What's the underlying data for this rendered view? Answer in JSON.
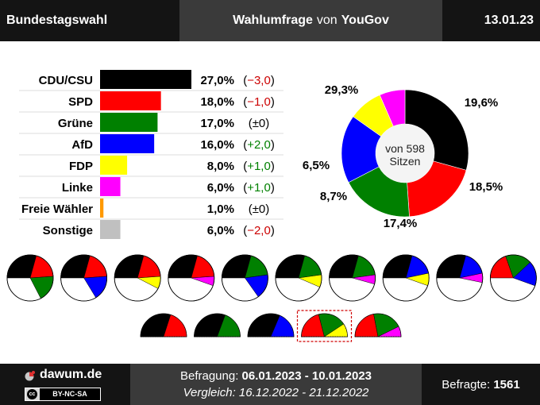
{
  "header": {
    "title": "Bundestagswahl",
    "poll_label": "Wahlumfrage",
    "poll_connector": "von",
    "pollster": "YouGov",
    "date": "13.01.23"
  },
  "chart_data": {
    "type": "bar",
    "categories": [
      "CDU/CSU",
      "SPD",
      "Grüne",
      "AfD",
      "FDP",
      "Linke",
      "Freie Wähler",
      "Sonstige"
    ],
    "values": [
      27.0,
      18.0,
      17.0,
      16.0,
      8.0,
      6.0,
      1.0,
      6.0
    ],
    "value_labels": [
      "27,0%",
      "18,0%",
      "17,0%",
      "16,0%",
      "8,0%",
      "6,0%",
      "1,0%",
      "6,0%"
    ],
    "changes": [
      "−3,0",
      "−1,0",
      "±0",
      "+2,0",
      "+1,0",
      "+1,0",
      "±0",
      "−2,0"
    ],
    "colors": [
      "#000000",
      "#ff0000",
      "#008000",
      "#0000ff",
      "#ffff00",
      "#ff00ff",
      "#ff9900",
      "#c0c0c0"
    ],
    "change_colors": {
      "negative": "#cc0000",
      "neutral": "#000000",
      "positive": "#008000"
    },
    "seat_chart": {
      "type": "donut",
      "center_line1": "von 598",
      "center_line2": "Sitzen",
      "segments": [
        {
          "party": "CDU/CSU",
          "value": 29.3,
          "label": "29,3%",
          "color": "#000000"
        },
        {
          "party": "SPD",
          "value": 19.6,
          "label": "19,6%",
          "color": "#ff0000"
        },
        {
          "party": "Grüne",
          "value": 18.5,
          "label": "18,5%",
          "color": "#008000"
        },
        {
          "party": "AfD",
          "value": 17.4,
          "label": "17,4%",
          "color": "#0000ff"
        },
        {
          "party": "FDP",
          "value": 8.7,
          "label": "8,7%",
          "color": "#ffff00"
        },
        {
          "party": "Linke",
          "value": 6.5,
          "label": "6,5%",
          "color": "#ff00ff"
        }
      ]
    },
    "coalitions": [
      {
        "parties": [
          "CDU/CSU",
          "SPD",
          "Grüne"
        ],
        "shares": [
          29.3,
          19.6,
          18.5
        ],
        "highlight": false
      },
      {
        "parties": [
          "CDU/CSU",
          "SPD",
          "AfD"
        ],
        "shares": [
          29.3,
          19.6,
          17.4
        ],
        "highlight": false
      },
      {
        "parties": [
          "CDU/CSU",
          "SPD",
          "FDP"
        ],
        "shares": [
          29.3,
          19.6,
          8.7
        ],
        "highlight": false
      },
      {
        "parties": [
          "CDU/CSU",
          "SPD",
          "Linke"
        ],
        "shares": [
          29.3,
          19.6,
          6.5
        ],
        "highlight": false
      },
      {
        "parties": [
          "CDU/CSU",
          "Grüne",
          "AfD"
        ],
        "shares": [
          29.3,
          18.5,
          17.4
        ],
        "highlight": false
      },
      {
        "parties": [
          "CDU/CSU",
          "Grüne",
          "FDP"
        ],
        "shares": [
          29.3,
          18.5,
          8.7
        ],
        "highlight": false
      },
      {
        "parties": [
          "CDU/CSU",
          "Grüne",
          "Linke"
        ],
        "shares": [
          29.3,
          18.5,
          6.5
        ],
        "highlight": false
      },
      {
        "parties": [
          "CDU/CSU",
          "AfD",
          "FDP"
        ],
        "shares": [
          29.3,
          17.4,
          8.7
        ],
        "highlight": false
      },
      {
        "parties": [
          "CDU/CSU",
          "AfD",
          "Linke"
        ],
        "shares": [
          29.3,
          17.4,
          6.5
        ],
        "highlight": false
      },
      {
        "parties": [
          "SPD",
          "Grüne",
          "AfD"
        ],
        "shares": [
          19.6,
          18.5,
          17.4
        ],
        "highlight": false
      },
      {
        "parties": [
          "CDU/CSU",
          "SPD"
        ],
        "shares": [
          29.3,
          19.6
        ],
        "highlight": false
      },
      {
        "parties": [
          "CDU/CSU",
          "Grüne"
        ],
        "shares": [
          29.3,
          18.5
        ],
        "highlight": false
      },
      {
        "parties": [
          "CDU/CSU",
          "AfD"
        ],
        "shares": [
          29.3,
          17.4
        ],
        "highlight": false
      },
      {
        "parties": [
          "SPD",
          "Grüne",
          "FDP"
        ],
        "shares": [
          19.6,
          18.5,
          8.7
        ],
        "highlight": true
      },
      {
        "parties": [
          "SPD",
          "Grüne",
          "Linke"
        ],
        "shares": [
          19.6,
          18.5,
          6.5
        ],
        "highlight": false
      }
    ]
  },
  "footer": {
    "brand": "dawum.de",
    "license": "BY-NC-SA",
    "license_icon": "cc",
    "survey_label": "Befragung:",
    "survey_period": "06.01.2023 - 10.01.2023",
    "compare_label": "Vergleich:",
    "compare_period": "16.12.2022 - 21.12.2022",
    "respondents_label": "Befragte:",
    "respondents": "1561"
  }
}
